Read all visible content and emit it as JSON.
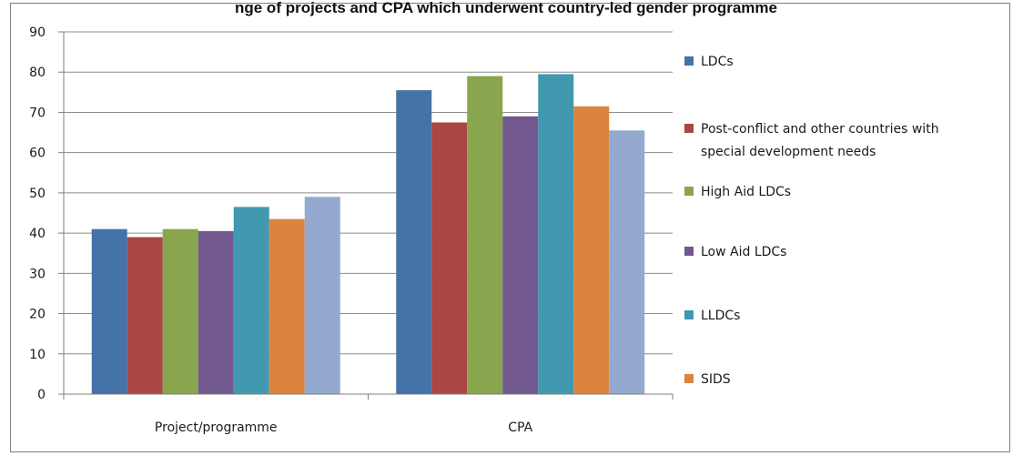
{
  "chart_data": {
    "type": "bar",
    "title": "nge of projects and CPA which underwent country-led gender programme",
    "categories": [
      "Project/programme",
      "CPA"
    ],
    "ylim": [
      0,
      90
    ],
    "yticks": [
      "0",
      "10",
      "20",
      "30",
      "40",
      "50",
      "60",
      "70",
      "80",
      "90"
    ],
    "grid": true,
    "legend_position": "right",
    "series": [
      {
        "name": "LDCs",
        "color": "#4572a7",
        "values": [
          41,
          75.5
        ]
      },
      {
        "name": "Post-conflict and other countries with special development needs",
        "legend_lines": [
          "Post-conflict and other countries with",
          "special development needs"
        ],
        "color": "#aa4643",
        "values": [
          39,
          67.5
        ]
      },
      {
        "name": "High Aid LDCs",
        "color": "#89a54e",
        "values": [
          41,
          79
        ]
      },
      {
        "name": "Low Aid LDCs",
        "color": "#71588f",
        "values": [
          40.5,
          69
        ]
      },
      {
        "name": "LLDCs",
        "color": "#4198af",
        "values": [
          46.5,
          79.5
        ]
      },
      {
        "name": "SIDS",
        "color": "#db843d",
        "values": [
          43.5,
          71.5
        ]
      },
      {
        "color": "#93a9cf",
        "values": [
          49,
          65.5
        ]
      }
    ]
  }
}
